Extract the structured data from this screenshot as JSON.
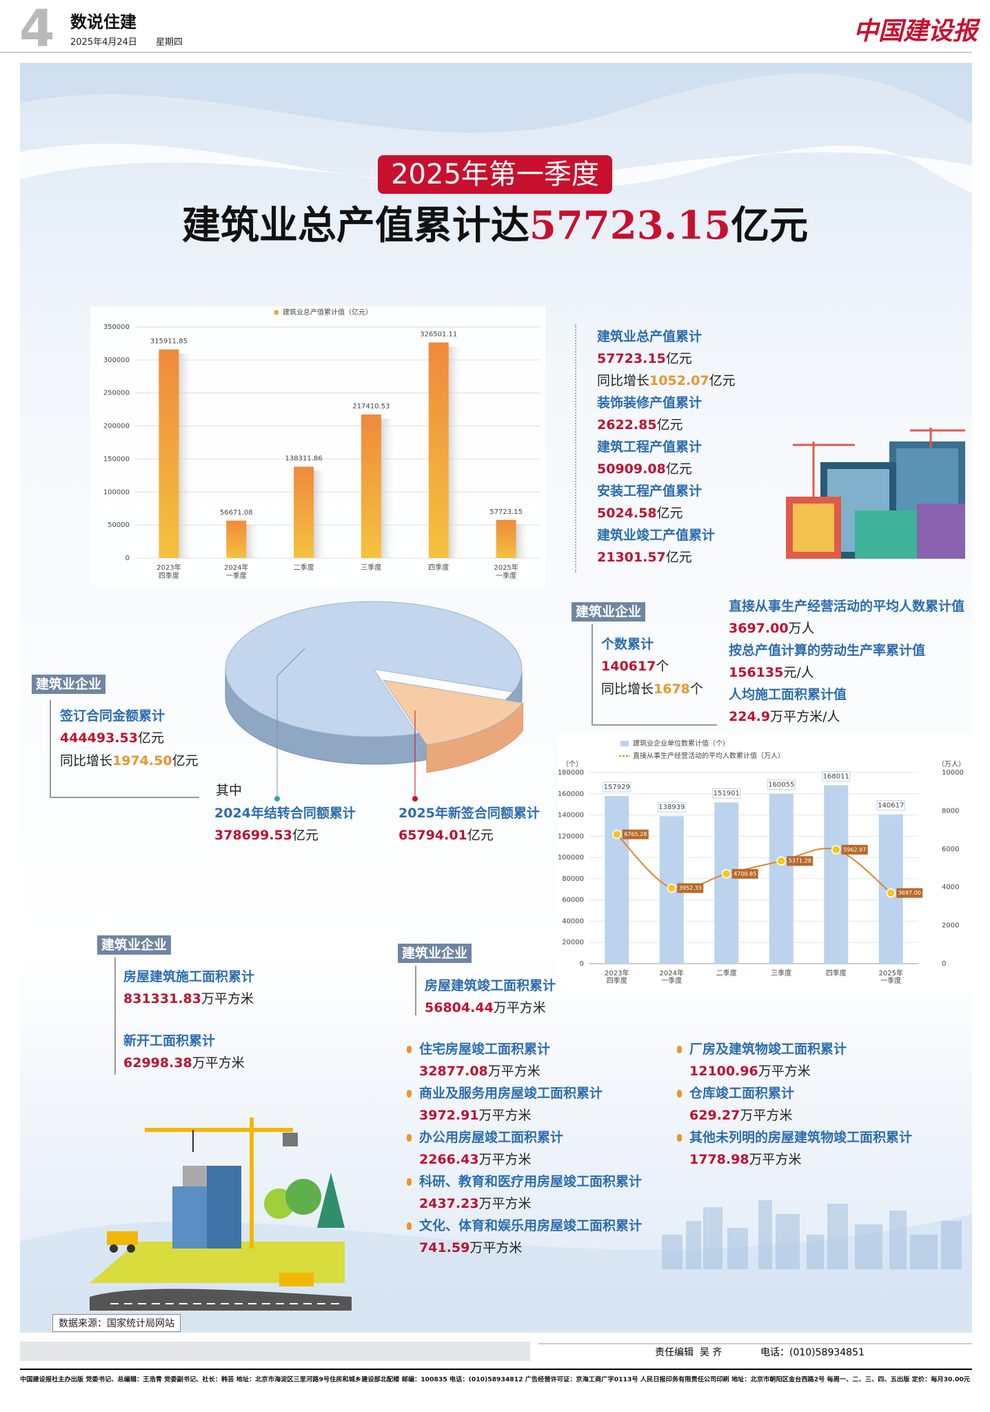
{
  "header": {
    "page_number": "4",
    "section": "数说住建",
    "date": "2025年4月24日",
    "weekday": "星期四",
    "masthead": "中国建设报"
  },
  "headline": {
    "kicker": "2025年第一季度",
    "title": "建筑业总产值累计达",
    "value": "57723.15",
    "unit": "亿元"
  },
  "chart_data": [
    {
      "type": "bar",
      "legend": "建筑业总产值累计值（亿元）",
      "color": "#f0a03a",
      "categories": [
        "2023年四季度",
        "2024年一季度",
        "二季度",
        "三季度",
        "四季度",
        "2025年一季度"
      ],
      "values": [
        315911.85,
        56671.08,
        138311.86,
        217410.53,
        326501.11,
        57723.15
      ],
      "ylim": [
        0,
        350000
      ],
      "yticks": [
        0,
        50000,
        100000,
        150000,
        200000,
        250000,
        300000,
        350000
      ],
      "grid": true
    },
    {
      "type": "pie",
      "categories": [
        "2024年结转合同额累计",
        "2025年新签合同额累计"
      ],
      "values": [
        378699.53,
        65794.01
      ],
      "unit": "亿元",
      "colors": [
        "#c3d6ee",
        "#f7cba5"
      ]
    },
    {
      "type": "bar_line",
      "categories": [
        "2023年四季度",
        "2024年一季度",
        "二季度",
        "三季度",
        "四季度",
        "2025年一季度"
      ],
      "y_label": "（个）",
      "y2_label": "（万人）",
      "series": [
        {
          "name": "建筑业企业单位数累计值（个）",
          "color": "#bcd3ee",
          "values": [
            157929,
            138939,
            151901,
            160055,
            168011,
            140617
          ]
        },
        {
          "name": "直接从事生产经营活动的平均人数累计值（万人）",
          "color": "#d58a2c",
          "axis": "y2",
          "values": [
            6765.28,
            3952.33,
            4700.85,
            5371.28,
            5962.97,
            3697.0
          ],
          "value_labels": [
            "6765.28",
            "3952.33",
            "4700.85",
            "5371.28",
            "5962.97",
            "3697.00"
          ]
        }
      ],
      "ylim": [
        0,
        180000
      ],
      "yticks": [
        0,
        20000,
        40000,
        60000,
        80000,
        100000,
        120000,
        140000,
        160000,
        180000
      ],
      "y2lim": [
        0,
        10000
      ],
      "y2ticks": [
        0,
        2000,
        4000,
        6000,
        8000,
        10000
      ],
      "grid": true
    }
  ],
  "output_stats": {
    "items": [
      {
        "label": "建筑业总产值累计",
        "value": "57723.15",
        "unit": "亿元",
        "growth_label": "同比增长",
        "growth": "1052.07",
        "growth_unit": "亿元"
      },
      {
        "label": "装饰装修产值累计",
        "value": "2622.85",
        "unit": "亿元"
      },
      {
        "label": "建筑工程产值累计",
        "value": "50909.08",
        "unit": "亿元"
      },
      {
        "label": "安装工程产值累计",
        "value": "5024.58",
        "unit": "亿元"
      },
      {
        "label": "建筑业竣工产值累计",
        "value": "21301.57",
        "unit": "亿元"
      }
    ]
  },
  "contracts": {
    "tag": "建筑业企业",
    "label": "签订合同金额累计",
    "value": "444493.53",
    "unit": "亿元",
    "growth_label": "同比增长",
    "growth": "1974.50",
    "growth_unit": "亿元",
    "among": "其中"
  },
  "enterprises": {
    "tag": "建筑业企业",
    "label": "个数累计",
    "value": "140617",
    "unit": "个",
    "growth_label": "同比增长",
    "growth": "1678",
    "growth_unit": "个",
    "items": [
      {
        "label": "直接从事生产经营活动的平均人数累计值",
        "value": "3697.00",
        "unit": "万人"
      },
      {
        "label": "按总产值计算的劳动生产率累计值",
        "value": "156135",
        "unit": "元/人"
      },
      {
        "label": "人均施工面积累计值",
        "value": "224.9",
        "unit": "万平方米/人"
      }
    ]
  },
  "areas": {
    "tag": "建筑业企业",
    "items": [
      {
        "label": "房屋建筑施工面积累计",
        "value": "831331.83",
        "unit": "万平方米"
      },
      {
        "label": "新开工面积累计",
        "value": "62998.38",
        "unit": "万平方米"
      }
    ]
  },
  "completion": {
    "tag": "建筑业企业",
    "label": "房屋建筑竣工面积累计",
    "value": "56804.44",
    "unit": "万平方米",
    "items": [
      {
        "label": "住宅房屋竣工面积累计",
        "value": "32877.08",
        "unit": "万平方米"
      },
      {
        "label": "商业及服务用房屋竣工面积累计",
        "value": "3972.91",
        "unit": "万平方米"
      },
      {
        "label": "办公用房屋竣工面积累计",
        "value": "2266.43",
        "unit": "万平方米"
      },
      {
        "label": "科研、教育和医疗用房屋竣工面积累计",
        "value": "2437.23",
        "unit": "万平方米"
      },
      {
        "label": "文化、体育和娱乐用房屋竣工面积累计",
        "value": "741.59",
        "unit": "万平方米"
      },
      {
        "label": "厂房及建筑物竣工面积累计",
        "value": "12100.96",
        "unit": "万平方米"
      },
      {
        "label": "仓库竣工面积累计",
        "value": "629.27",
        "unit": "万平方米"
      },
      {
        "label": "其他未列明的房屋建筑物竣工面积累计",
        "value": "1778.98",
        "unit": "万平方米"
      }
    ]
  },
  "source": "数据来源：国家统计局网站",
  "footer": {
    "editor_label": "责任编辑",
    "editor": "吴 齐",
    "phone": "电话：(010)58934851",
    "imprint": "中国建设报社主办出版 党委书记、总编辑：王浩青 党委副书记、社长：韩芸 地址：北京市海淀区三里河路9号住房和城乡建设部北配楼 邮编：100835 电话：(010)58934812 广告经营许可证：京海工商广字0113号 人民日报印务有限责任公司印刷 地址：北京市朝阳区金台西路2号 每周一、二、三、四、五出版 定价：每月30.00元"
  }
}
